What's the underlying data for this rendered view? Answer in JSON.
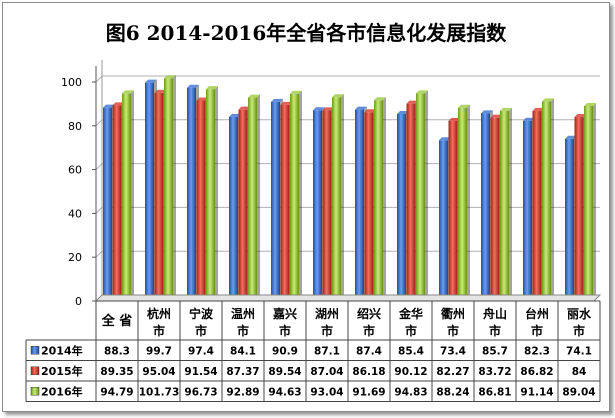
{
  "chart_data": {
    "type": "bar",
    "title": "图6   2014-2016年全省各市信息化发展指数",
    "categories": [
      "全 省",
      "杭州市",
      "宁波市",
      "温州市",
      "嘉兴市",
      "湖州市",
      "绍兴市",
      "金华市",
      "衢州市",
      "舟山市",
      "台州市",
      "丽水市"
    ],
    "category_lines": [
      [
        "全 省"
      ],
      [
        "杭州",
        "市"
      ],
      [
        "宁波",
        "市"
      ],
      [
        "温州",
        "市"
      ],
      [
        "嘉兴",
        "市"
      ],
      [
        "湖州",
        "市"
      ],
      [
        "绍兴",
        "市"
      ],
      [
        "金华",
        "市"
      ],
      [
        "衢州",
        "市"
      ],
      [
        "舟山",
        "市"
      ],
      [
        "台州",
        "市"
      ],
      [
        "丽水",
        "市"
      ]
    ],
    "series": [
      {
        "name": "2014年",
        "color": "#3b6fd1",
        "values": [
          88.3,
          99.7,
          97.4,
          84.1,
          90.9,
          87.1,
          87.4,
          85.4,
          73.4,
          85.7,
          82.3,
          74.1
        ],
        "labels": [
          "88.3",
          "99.7",
          "97.4",
          "84.1",
          "90.9",
          "87.1",
          "87.4",
          "85.4",
          "73.4",
          "85.7",
          "82.3",
          "74.1"
        ]
      },
      {
        "name": "2015年",
        "color": "#d63a31",
        "values": [
          89.35,
          95.04,
          91.54,
          87.37,
          89.54,
          87.04,
          86.18,
          90.12,
          82.27,
          83.72,
          86.82,
          84
        ],
        "labels": [
          "89.35",
          "95.04",
          "91.54",
          "87.37",
          "89.54",
          "87.04",
          "86.18",
          "90.12",
          "82.27",
          "83.72",
          "86.82",
          "84"
        ]
      },
      {
        "name": "2016年",
        "color": "#9ccb3e",
        "values": [
          94.79,
          101.73,
          96.73,
          92.89,
          94.63,
          93.04,
          91.69,
          94.83,
          88.24,
          86.81,
          91.14,
          89.04
        ],
        "labels": [
          "94.79",
          "101.73",
          "96.73",
          "92.89",
          "94.63",
          "93.04",
          "91.69",
          "94.83",
          "88.24",
          "86.81",
          "91.14",
          "89.04"
        ]
      }
    ],
    "ylim": [
      0,
      100
    ],
    "yticks": [
      0,
      20,
      40,
      60,
      80,
      100
    ],
    "grid": true,
    "legend": "data table",
    "xlabel": "",
    "ylabel": ""
  }
}
